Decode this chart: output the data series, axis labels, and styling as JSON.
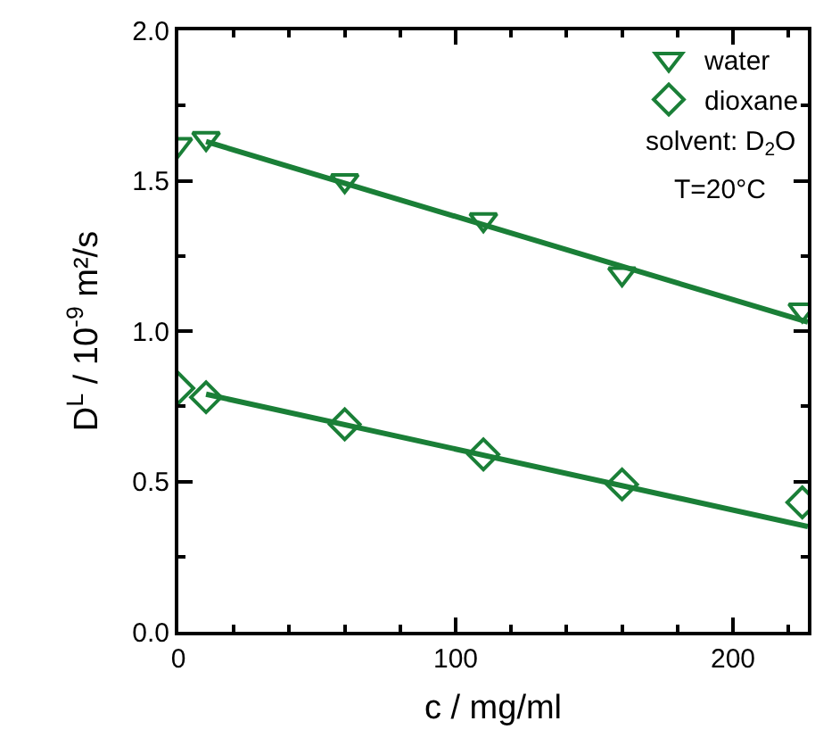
{
  "chart_data": {
    "type": "scatter",
    "xlabel": "c / mg/ml",
    "ylabel": "D$^{L}$ / 10$^{-9}$ m²/s",
    "xlim": [
      0,
      227
    ],
    "ylim": [
      0,
      2.0
    ],
    "xticks": [
      0,
      100,
      200
    ],
    "yticks": [
      {
        "value": 0,
        "label": "0.0"
      },
      {
        "value": 0.5,
        "label": "0.5"
      },
      {
        "value": 1.0,
        "label": "1.0"
      },
      {
        "value": 1.5,
        "label": "1.5"
      },
      {
        "value": 2.0,
        "label": "2.0"
      }
    ],
    "legend": "top right",
    "annotations": [
      "solvent: D$_{2}$O",
      "T=20°C"
    ],
    "series": [
      {
        "name": "water",
        "marker": "triangle",
        "color": "#1a7f37",
        "x": [
          0,
          10,
          60,
          110,
          160,
          225
        ],
        "values": [
          1.62,
          1.64,
          1.5,
          1.37,
          1.19,
          1.07
        ]
      },
      {
        "name": "dioxane",
        "marker": "diamond",
        "color": "#1a7f37",
        "x": [
          0,
          10,
          60,
          110,
          160,
          225
        ],
        "values": [
          0.81,
          0.78,
          0.69,
          0.59,
          0.49,
          0.43
        ]
      },
      {
        "type": "line",
        "marker": "none",
        "color": "#1a7f37",
        "x": [
          10,
          227
        ],
        "values": [
          1.63,
          1.03
        ]
      },
      {
        "type": "line",
        "marker": "none",
        "color": "#1a7f37",
        "x": [
          10,
          227
        ],
        "values": [
          0.79,
          0.35
        ]
      }
    ]
  }
}
